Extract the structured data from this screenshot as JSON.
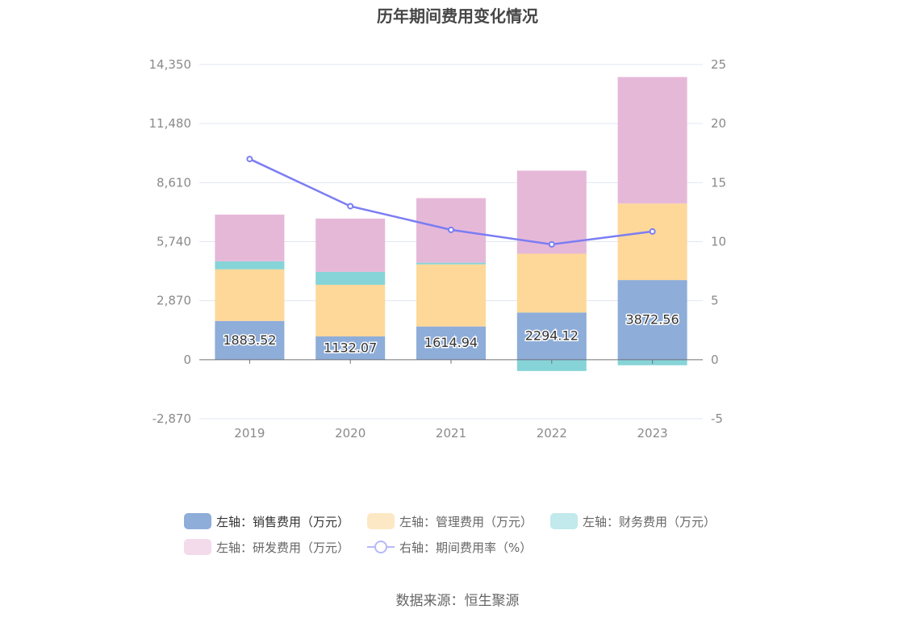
{
  "chart_data": {
    "type": "bar",
    "title": "历年期间费用变化情况",
    "categories": [
      "2019",
      "2020",
      "2021",
      "2022",
      "2023"
    ],
    "left_axis": {
      "ticks": [
        "14,350",
        "11,480",
        "8,610",
        "5,740",
        "2,870",
        "0",
        "-2,870"
      ],
      "ylim": [
        -2870,
        14350
      ]
    },
    "right_axis": {
      "ticks": [
        "25",
        "20",
        "15",
        "10",
        "5",
        "0",
        "-5"
      ],
      "ylim": [
        -5,
        25
      ]
    },
    "series": [
      {
        "name": "左轴：销售费用（万元）",
        "type": "bar",
        "axis": "left",
        "color": "#8eadd9",
        "values": [
          1883.52,
          1132.07,
          1614.94,
          2294.12,
          3872.56
        ],
        "labels": [
          "1883.52",
          "1132.07",
          "1614.94",
          "2294.12",
          "3872.56"
        ]
      },
      {
        "name": "左轴：管理费用（万元）",
        "type": "bar",
        "axis": "left",
        "color": "#fdd899",
        "values": [
          2510,
          2510,
          3020,
          2860,
          3720
        ]
      },
      {
        "name": "左轴：财务费用（万元）",
        "type": "bar",
        "axis": "left",
        "color": "#86d4d7",
        "values": [
          390,
          630,
          80,
          -550,
          -270
        ]
      },
      {
        "name": "左轴：研发费用（万元）",
        "type": "bar",
        "axis": "left",
        "color": "#e6b8d8",
        "values": [
          2270,
          2590,
          3140,
          4040,
          6150
        ]
      },
      {
        "name": "右轴：期间费用率（%）",
        "type": "line",
        "axis": "right",
        "color": "#7b7df3",
        "values": [
          17.0,
          13.0,
          11.0,
          9.77,
          10.86
        ]
      }
    ],
    "legend_position": "bottom",
    "grid": true
  },
  "legend": {
    "items": [
      {
        "label": "左轴：销售费用（万元）",
        "color": "#8eadd9"
      },
      {
        "label": "左轴：管理费用（万元）",
        "color": "#fde8c6"
      },
      {
        "label": "左轴：财务费用（万元）",
        "color": "#c2e9eb"
      },
      {
        "label": "左轴：研发费用（万元）",
        "color": "#f3dbec"
      },
      {
        "label": "右轴：期间费用率（%）",
        "color": "#b7b8f7"
      }
    ]
  },
  "source": "数据来源：恒生聚源"
}
